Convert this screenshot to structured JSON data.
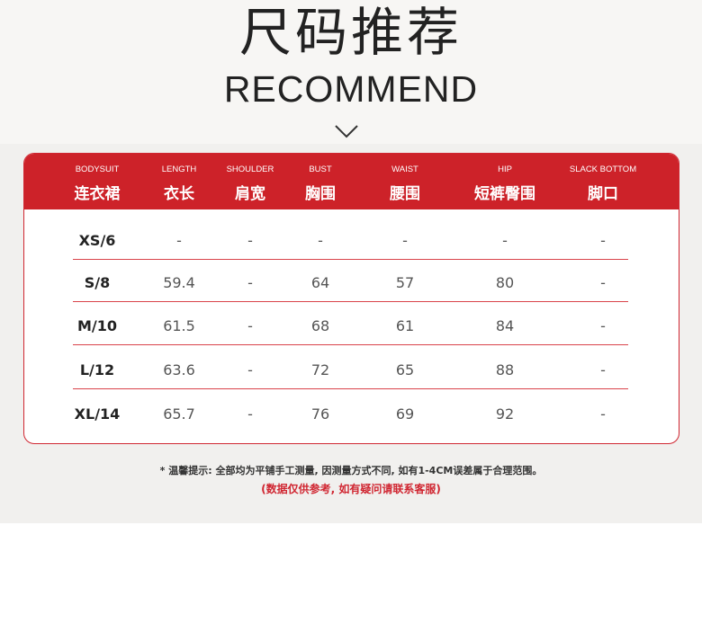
{
  "title_cn": "尺码推荐",
  "title_en": "RECOMMEND",
  "colors": {
    "accent": "#cd2229"
  },
  "columns": [
    {
      "en": "BODYSUIT",
      "cn": "连衣裙"
    },
    {
      "en": "LENGTH",
      "cn": "衣长"
    },
    {
      "en": "SHOULDER",
      "cn": "肩宽"
    },
    {
      "en": "BUST",
      "cn": "胸围"
    },
    {
      "en": "WAIST",
      "cn": "腰围"
    },
    {
      "en": "HIP",
      "cn": "短裤臀围"
    },
    {
      "en": "SLACK BOTTOM",
      "cn": "脚口"
    }
  ],
  "rows": [
    [
      "XS/6",
      "-",
      "-",
      "-",
      "-",
      "-",
      "-"
    ],
    [
      "S/8",
      "59.4",
      "-",
      "64",
      "57",
      "80",
      "-"
    ],
    [
      "M/10",
      "61.5",
      "-",
      "68",
      "61",
      "84",
      "-"
    ],
    [
      "L/12",
      "63.6",
      "-",
      "72",
      "65",
      "88",
      "-"
    ],
    [
      "XL/14",
      "65.7",
      "-",
      "76",
      "69",
      "92",
      "-"
    ]
  ],
  "note": "* 温馨提示: 全部均为平铺手工测量, 因测量方式不同, 如有1-4CM误差属于合理范围。",
  "note_red": "(数据仅供参考, 如有疑问请联系客服)"
}
